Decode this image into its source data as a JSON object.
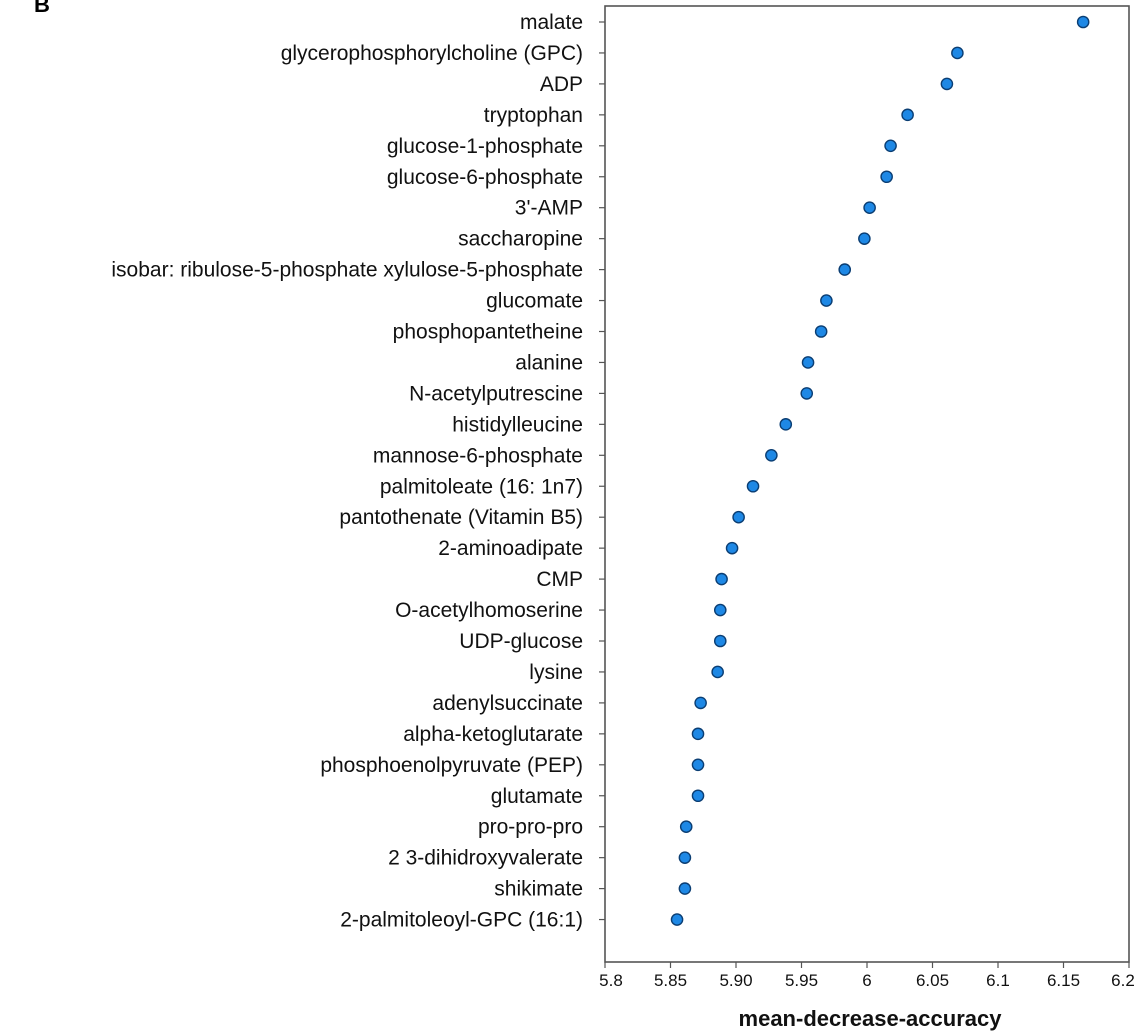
{
  "panel_label": "B",
  "chart_data": {
    "type": "scatter",
    "orientation": "horizontal-dot",
    "title": "",
    "xlabel": "mean-decrease-accuracy",
    "ylabel": "",
    "xlim": [
      5.8,
      6.2
    ],
    "x_ticks": [
      5.8,
      5.85,
      5.9,
      5.95,
      6.0,
      6.05,
      6.1,
      6.15,
      6.2
    ],
    "x_tick_labels": [
      "5.8",
      "5.85",
      "5.90",
      "5.95",
      "6",
      "6.05",
      "6.1",
      "6.15",
      "6.2"
    ],
    "grid": false,
    "marker_color": "#1e88e5",
    "marker_edge": "#0b3e73",
    "categories": [
      "malate",
      "glycerophosphorylcholine (GPC)",
      "ADP",
      "tryptophan",
      "glucose-1-phosphate",
      "glucose-6-phosphate",
      "3'-AMP",
      "saccharopine",
      "isobar: ribulose-5-phosphate xylulose-5-phosphate",
      "glucomate",
      "phosphopantetheine",
      "alanine",
      "N-acetylputrescine",
      "histidylleucine",
      "mannose-6-phosphate",
      "palmitoleate (16: 1n7)",
      "pantothenate (Vitamin B5)",
      "2-aminoadipate",
      "CMP",
      "O-acetylhomoserine",
      "UDP-glucose",
      "lysine",
      "adenylsuccinate",
      "alpha-ketoglutarate",
      "phosphoenolpyruvate (PEP)",
      "glutamate",
      "pro-pro-pro",
      "2 3-dihidroxyvalerate",
      "shikimate",
      "2-palmitoleoyl-GPC (16:1)"
    ],
    "values": [
      6.165,
      6.069,
      6.061,
      6.031,
      6.018,
      6.015,
      6.002,
      5.998,
      5.983,
      5.969,
      5.965,
      5.955,
      5.954,
      5.938,
      5.927,
      5.913,
      5.902,
      5.897,
      5.889,
      5.888,
      5.888,
      5.886,
      5.873,
      5.871,
      5.871,
      5.871,
      5.862,
      5.861,
      5.861,
      5.855
    ]
  }
}
